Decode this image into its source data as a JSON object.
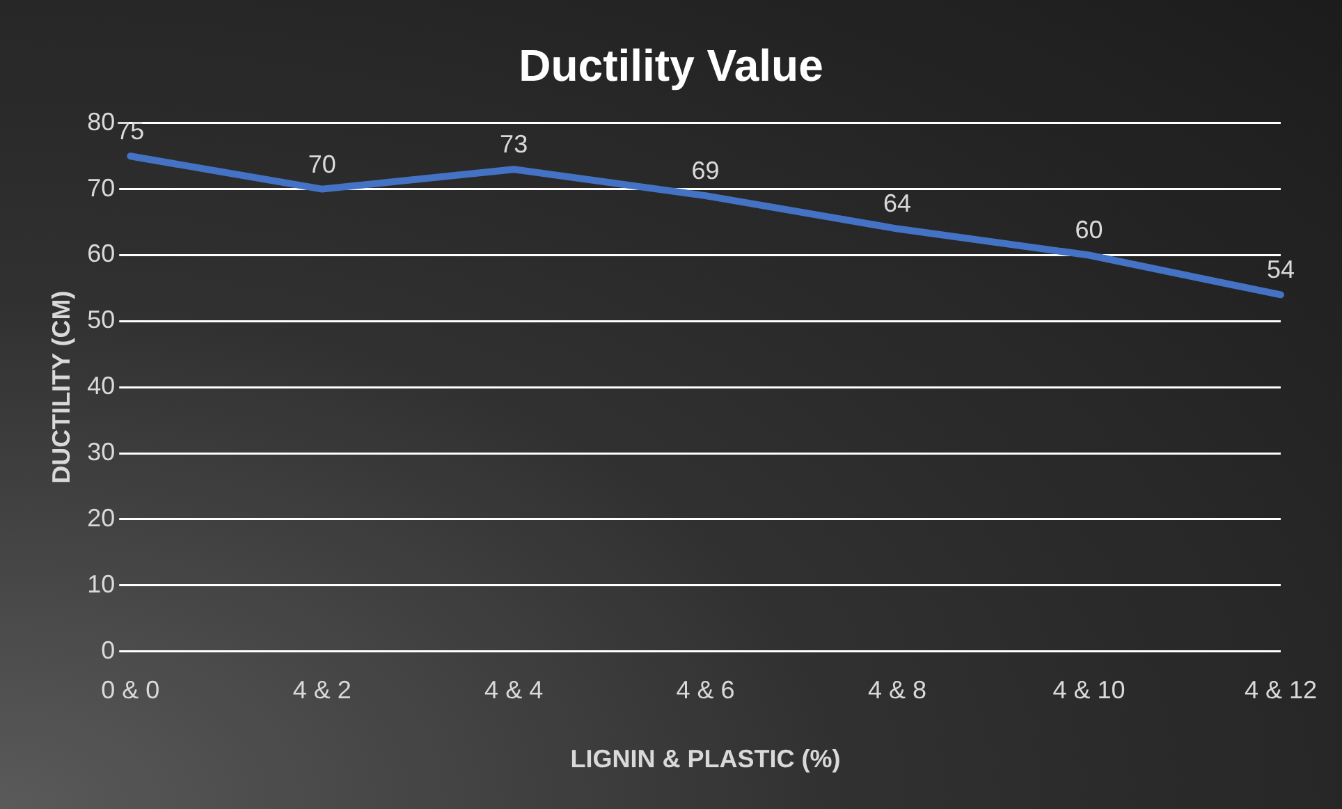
{
  "chart_data": {
    "type": "line",
    "title": "Ductility Value",
    "xlabel": "LIGNIN & PLASTIC (%)",
    "ylabel": "DUCTILITY (CM)",
    "categories": [
      "0 & 0",
      "4 & 2",
      "4 & 4",
      "4 & 6",
      "4 & 8",
      "4 & 10",
      "4 & 12"
    ],
    "series": [
      {
        "color": "#4472c4",
        "values": [
          75,
          70,
          73,
          69,
          64,
          60,
          54
        ]
      }
    ],
    "ylim": [
      0,
      80
    ],
    "yticks": [
      0,
      10,
      20,
      30,
      40,
      50,
      60,
      70,
      80
    ],
    "grid": "y",
    "legend": false,
    "marker": "none",
    "line_style": "solid",
    "data_labels": true
  }
}
